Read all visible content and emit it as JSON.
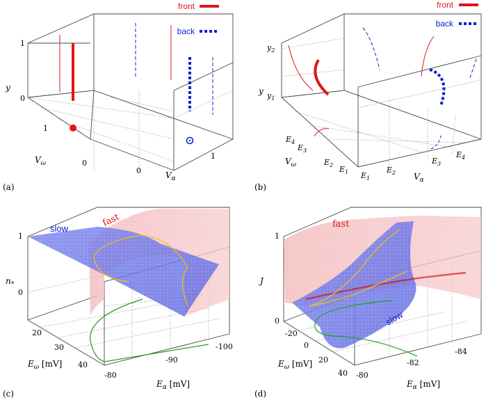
{
  "panels": [
    {
      "id": "a",
      "label": "(a)",
      "legend": {
        "front": "front",
        "back": "back"
      },
      "axes": {
        "z": "y",
        "left": "V",
        "left_sub": "ω",
        "right": "V",
        "right_sub": "α"
      },
      "ticks": {
        "z": [
          "1",
          "0"
        ],
        "left": [
          "1",
          "0"
        ],
        "right": [
          "0",
          "1"
        ]
      }
    },
    {
      "id": "b",
      "label": "(b)",
      "legend": {
        "front": "front",
        "back": "back"
      },
      "axes": {
        "z": "y",
        "left": "V",
        "left_sub": "ω",
        "right": "V",
        "right_sub": "α"
      },
      "ticks": {
        "z": [
          {
            "base": "y",
            "sub": "2"
          },
          {
            "base": "y",
            "sub": "1"
          }
        ],
        "left": [
          {
            "base": "E",
            "sub": "4"
          },
          {
            "base": "E",
            "sub": "3"
          },
          {
            "base": "E",
            "sub": "2"
          },
          {
            "base": "E",
            "sub": "1"
          }
        ],
        "right": [
          {
            "base": "E",
            "sub": "1"
          },
          {
            "base": "E",
            "sub": "2"
          },
          {
            "base": "E",
            "sub": "3"
          },
          {
            "base": "E",
            "sub": "4"
          }
        ]
      }
    },
    {
      "id": "c",
      "label": "(c)",
      "surfaces": {
        "slow": "slow",
        "fast": "fast"
      },
      "axes": {
        "z": "n",
        "z_sub": "*",
        "left": "E",
        "left_sub": "ω",
        "left_unit": " [mV]",
        "right": "E",
        "right_sub": "α",
        "right_unit": " [mV]"
      },
      "ticks": {
        "z": [
          "1",
          "0"
        ],
        "left": [
          "20",
          "30",
          "40"
        ],
        "right": [
          "-80",
          "-90",
          "-100"
        ]
      }
    },
    {
      "id": "d",
      "label": "(d)",
      "surfaces": {
        "slow": "slow",
        "fast": "fast"
      },
      "axes": {
        "z": "J",
        "left": "E",
        "left_sub": "ω",
        "left_unit": " [mV]",
        "right": "E",
        "right_sub": "α",
        "right_unit": " [mV]"
      },
      "ticks": {
        "z": [
          "1",
          "0"
        ],
        "left": [
          "-20",
          "0",
          "20",
          "40"
        ],
        "right": [
          "-80",
          "-82",
          "-84"
        ]
      }
    }
  ],
  "colors": {
    "front": "#e0151c",
    "back": "#1020d0",
    "nullcline": "#20a020",
    "intersection": "#e8c21a"
  }
}
